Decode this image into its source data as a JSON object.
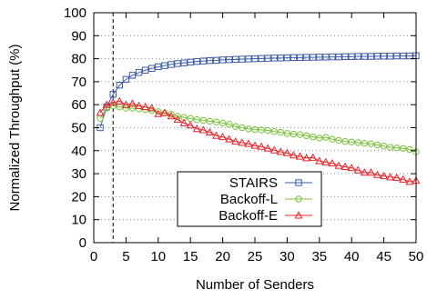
{
  "chart_data": {
    "type": "line",
    "xlabel": "Number of Senders",
    "ylabel": "Normalized Throughput (%)",
    "xlim": [
      0,
      50
    ],
    "ylim": [
      0,
      100
    ],
    "xticks": [
      0,
      5,
      10,
      15,
      20,
      25,
      30,
      35,
      40,
      45,
      50
    ],
    "yticks": [
      0,
      10,
      20,
      30,
      40,
      50,
      60,
      70,
      80,
      90,
      100
    ],
    "grid": "horizontal dotted",
    "legend_position": "bottom-center",
    "vline": {
      "x": 3,
      "style": "dashed"
    },
    "x": [
      1,
      2,
      3,
      4,
      5,
      6,
      7,
      8,
      9,
      10,
      11,
      12,
      13,
      14,
      15,
      16,
      17,
      18,
      19,
      20,
      21,
      22,
      23,
      24,
      25,
      26,
      27,
      28,
      29,
      30,
      31,
      32,
      33,
      34,
      35,
      36,
      37,
      38,
      39,
      40,
      41,
      42,
      43,
      44,
      45,
      46,
      47,
      48,
      49,
      50
    ],
    "series": [
      {
        "name": "STAIRS",
        "color": "#3b5ba8",
        "marker": "square",
        "values": [
          50,
          59,
          64.5,
          68.5,
          71,
          72.8,
          74,
          75,
          75.8,
          76.5,
          77,
          77.5,
          77.9,
          78.2,
          78.5,
          78.8,
          79,
          79.2,
          79.3,
          79.5,
          79.6,
          79.7,
          79.8,
          79.9,
          80,
          80.1,
          80.2,
          80.3,
          80.3,
          80.4,
          80.5,
          80.5,
          80.6,
          80.6,
          80.7,
          80.7,
          80.8,
          80.8,
          80.9,
          80.9,
          81,
          81,
          81,
          81.1,
          81.1,
          81.1,
          81.2,
          81.2,
          81.2,
          81.3
        ]
      },
      {
        "name": "Backoff-L",
        "color": "#7cc23f",
        "marker": "circle",
        "values": [
          54,
          58.5,
          59.5,
          59,
          58.5,
          58.5,
          58.2,
          57.8,
          57.5,
          57,
          56.3,
          55.8,
          55,
          54.5,
          54,
          53.5,
          53.2,
          52.8,
          52.5,
          52,
          51.5,
          50.5,
          50,
          49.5,
          49.2,
          49,
          48.8,
          48.3,
          48,
          47.5,
          47.2,
          47,
          46.5,
          46,
          45.5,
          45.8,
          45,
          44.5,
          44,
          43.8,
          43.5,
          43.2,
          43,
          42.5,
          42,
          41.5,
          41.2,
          41,
          40.5,
          39.5
        ]
      },
      {
        "name": "Backoff-E",
        "color": "#e8242a",
        "marker": "triangle",
        "values": [
          56.5,
          60,
          61,
          61.5,
          60,
          60.5,
          59.5,
          59,
          58.5,
          56,
          56.5,
          55,
          53.5,
          52,
          51,
          49.5,
          49,
          48,
          46.5,
          46,
          45,
          44,
          43.5,
          43,
          42.2,
          41.8,
          41,
          40.2,
          39.5,
          39,
          38,
          37.5,
          36.8,
          37,
          35.5,
          35,
          34.5,
          33.5,
          33,
          32.5,
          31.5,
          30.5,
          30.5,
          29.5,
          29,
          28.5,
          28.3,
          27.5,
          26.5,
          27
        ]
      }
    ]
  }
}
